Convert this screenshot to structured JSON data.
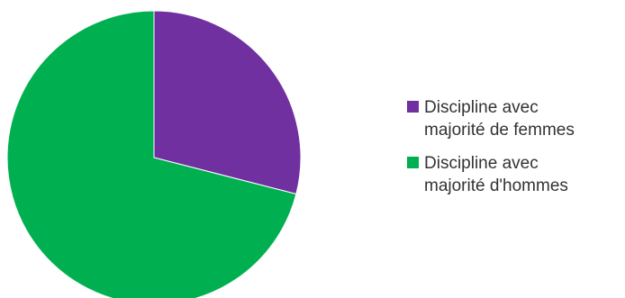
{
  "chart_data": {
    "type": "pie",
    "categories": [
      "Discipline avec\nmajorité de femmes",
      "Discipline avec\nmajorité d'hommes"
    ],
    "values": [
      29,
      71
    ],
    "colors": [
      "#7030a0",
      "#00b050"
    ],
    "title": "",
    "legend_position": "right",
    "start_angle": "top, clockwise"
  }
}
